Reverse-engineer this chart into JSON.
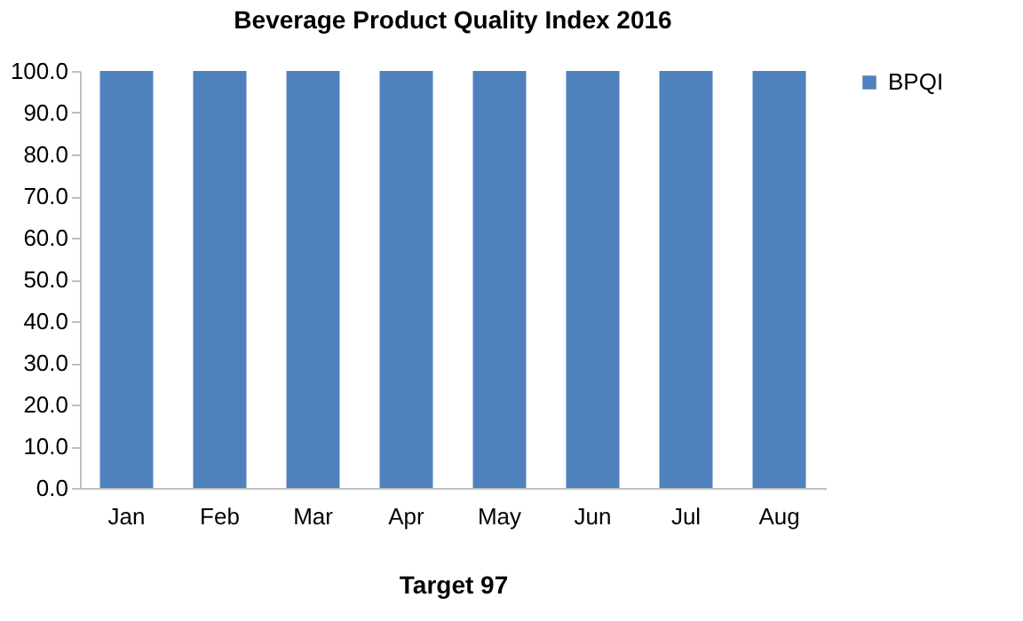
{
  "chart_data": {
    "type": "bar",
    "title": "Beverage Product Quality Index 2016",
    "xlabel": "Target 97",
    "categories": [
      "Jan",
      "Feb",
      "Mar",
      "Apr",
      "May",
      "Jun",
      "Jul",
      "Aug"
    ],
    "series": [
      {
        "name": "BPQI",
        "color": "#4f81bd",
        "values": [
          100,
          100,
          100,
          100,
          100,
          100,
          100,
          100
        ]
      }
    ],
    "ylim": [
      0,
      100
    ],
    "yticks": [
      {
        "value": 0,
        "label": "0.0"
      },
      {
        "value": 10,
        "label": "10.0"
      },
      {
        "value": 20,
        "label": "20.0"
      },
      {
        "value": 30,
        "label": "30.0"
      },
      {
        "value": 40,
        "label": "40.0"
      },
      {
        "value": 50,
        "label": "50.0"
      },
      {
        "value": 60,
        "label": "60.0"
      },
      {
        "value": 70,
        "label": "70.0"
      },
      {
        "value": 80,
        "label": "80.0"
      },
      {
        "value": 90,
        "label": "90.0"
      },
      {
        "value": 100,
        "label": "100.0"
      }
    ],
    "grid": false,
    "legend": "right"
  }
}
